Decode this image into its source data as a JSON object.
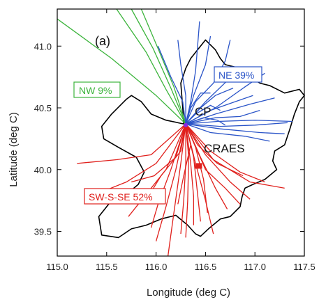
{
  "chart_data": {
    "type": "line",
    "panel_label": "(a)",
    "xlabel": "Longitude (deg C)",
    "ylabel": "Latitude (deg C)",
    "xlim": [
      115.0,
      117.5
    ],
    "ylim": [
      39.3,
      41.3
    ],
    "xticks": [
      "115.0",
      "115.5",
      "116.0",
      "116.5",
      "117.0",
      "117.5"
    ],
    "yticks": [
      "39.5",
      "40.0",
      "40.5",
      "41.0"
    ],
    "colors": {
      "NW": "#3cb43c",
      "NE": "#2a54c8",
      "SW-S-SE": "#e0201c",
      "boundary": "#000000",
      "CP_marker": "#8a2be2"
    },
    "annotations": {
      "nw_label": "NW 9%",
      "ne_label": "NE 39%",
      "sw_label": "SW-S-SE 52%",
      "cp_label": "CP",
      "craes_label": "CRAES"
    },
    "sites": {
      "CP": [
        116.3,
        40.36
      ],
      "CRAES": [
        116.43,
        40.03
      ]
    },
    "boundary": [
      [
        116.28,
        40.37
      ],
      [
        116.1,
        40.4
      ],
      [
        115.95,
        40.45
      ],
      [
        115.85,
        40.55
      ],
      [
        115.75,
        40.6
      ],
      [
        115.7,
        40.57
      ],
      [
        115.55,
        40.45
      ],
      [
        115.45,
        40.35
      ],
      [
        115.47,
        40.25
      ],
      [
        115.62,
        40.18
      ],
      [
        115.8,
        40.1
      ],
      [
        115.88,
        39.98
      ],
      [
        115.82,
        39.88
      ],
      [
        115.7,
        39.8
      ],
      [
        115.55,
        39.75
      ],
      [
        115.42,
        39.62
      ],
      [
        115.45,
        39.47
      ],
      [
        115.62,
        39.45
      ],
      [
        115.75,
        39.52
      ],
      [
        115.9,
        39.55
      ],
      [
        116.05,
        39.6
      ],
      [
        116.2,
        39.63
      ],
      [
        116.32,
        39.55
      ],
      [
        116.4,
        39.48
      ],
      [
        116.45,
        39.46
      ],
      [
        116.53,
        39.52
      ],
      [
        116.65,
        39.6
      ],
      [
        116.75,
        39.62
      ],
      [
        116.85,
        39.7
      ],
      [
        116.87,
        39.78
      ],
      [
        116.9,
        39.85
      ],
      [
        116.98,
        39.88
      ],
      [
        117.1,
        39.92
      ],
      [
        117.22,
        40.0
      ],
      [
        117.18,
        40.07
      ],
      [
        117.2,
        40.15
      ],
      [
        117.3,
        40.2
      ],
      [
        117.35,
        40.32
      ],
      [
        117.4,
        40.45
      ],
      [
        117.45,
        40.55
      ],
      [
        117.5,
        40.6
      ],
      [
        117.45,
        40.65
      ],
      [
        117.3,
        40.62
      ],
      [
        117.15,
        40.68
      ],
      [
        117.05,
        40.7
      ],
      [
        116.95,
        40.75
      ],
      [
        116.85,
        40.82
      ],
      [
        116.7,
        40.85
      ],
      [
        116.65,
        40.9
      ],
      [
        116.6,
        40.97
      ],
      [
        116.5,
        41.05
      ],
      [
        116.43,
        40.98
      ],
      [
        116.35,
        40.9
      ],
      [
        116.3,
        40.82
      ],
      [
        116.25,
        40.7
      ],
      [
        116.27,
        40.5
      ],
      [
        116.28,
        40.37
      ]
    ],
    "series": [
      {
        "group": "NW",
        "lines": [
          [
            [
              115.0,
              41.22
            ],
            [
              115.55,
              40.9
            ],
            [
              116.0,
              40.6
            ],
            [
              116.3,
              40.37
            ]
          ],
          [
            [
              115.6,
              41.3
            ],
            [
              115.9,
              40.95
            ],
            [
              116.1,
              40.65
            ],
            [
              116.3,
              40.37
            ]
          ],
          [
            [
              115.75,
              41.3
            ],
            [
              115.97,
              40.98
            ],
            [
              116.15,
              40.66
            ],
            [
              116.3,
              40.37
            ]
          ],
          [
            [
              115.85,
              41.3
            ],
            [
              116.02,
              40.98
            ],
            [
              116.18,
              40.67
            ],
            [
              116.3,
              40.37
            ]
          ]
        ]
      },
      {
        "group": "NE",
        "lines": [
          [
            [
              116.3,
              40.37
            ],
            [
              116.35,
              40.55
            ],
            [
              116.4,
              40.8
            ],
            [
              116.44,
              41.2
            ]
          ],
          [
            [
              116.3,
              40.37
            ],
            [
              116.38,
              40.6
            ],
            [
              116.5,
              40.85
            ],
            [
              116.55,
              41.08
            ]
          ],
          [
            [
              116.3,
              40.37
            ],
            [
              116.4,
              40.55
            ],
            [
              116.58,
              40.7
            ],
            [
              116.7,
              40.88
            ],
            [
              116.75,
              41.05
            ]
          ],
          [
            [
              116.3,
              40.37
            ],
            [
              116.3,
              40.6
            ],
            [
              116.25,
              40.85
            ],
            [
              116.22,
              41.05
            ]
          ],
          [
            [
              116.3,
              40.37
            ],
            [
              116.27,
              40.55
            ],
            [
              116.15,
              40.75
            ],
            [
              116.02,
              41.0
            ]
          ],
          [
            [
              116.3,
              40.37
            ],
            [
              116.35,
              40.5
            ],
            [
              116.45,
              40.62
            ],
            [
              116.55,
              40.62
            ]
          ],
          [
            [
              116.3,
              40.37
            ],
            [
              116.45,
              40.5
            ],
            [
              116.6,
              40.6
            ],
            [
              116.78,
              40.66
            ]
          ],
          [
            [
              116.3,
              40.37
            ],
            [
              116.55,
              40.48
            ],
            [
              116.8,
              40.55
            ],
            [
              116.98,
              40.6
            ]
          ],
          [
            [
              116.3,
              40.37
            ],
            [
              116.6,
              40.42
            ],
            [
              116.85,
              40.43
            ],
            [
              117.05,
              40.48
            ]
          ],
          [
            [
              116.3,
              40.37
            ],
            [
              116.65,
              40.35
            ],
            [
              117.0,
              40.36
            ],
            [
              117.33,
              40.38
            ]
          ],
          [
            [
              116.3,
              40.37
            ],
            [
              116.65,
              40.33
            ],
            [
              117.05,
              40.3
            ],
            [
              117.3,
              40.29
            ]
          ],
          [
            [
              116.3,
              40.37
            ],
            [
              116.55,
              40.3
            ],
            [
              116.9,
              40.27
            ],
            [
              117.15,
              40.23
            ]
          ],
          [
            [
              116.3,
              40.37
            ],
            [
              116.62,
              40.39
            ],
            [
              117.0,
              40.4
            ],
            [
              117.38,
              40.39
            ]
          ],
          [
            [
              116.3,
              40.37
            ],
            [
              116.5,
              40.55
            ],
            [
              116.72,
              40.72
            ],
            [
              116.92,
              40.83
            ]
          ],
          [
            [
              116.3,
              40.37
            ],
            [
              116.6,
              40.5
            ],
            [
              116.9,
              40.67
            ],
            [
              117.1,
              40.78
            ]
          ],
          [
            [
              116.3,
              40.37
            ],
            [
              116.6,
              40.45
            ],
            [
              116.95,
              40.53
            ],
            [
              117.2,
              40.58
            ]
          ],
          [
            [
              116.3,
              40.37
            ],
            [
              116.4,
              40.45
            ],
            [
              116.55,
              40.52
            ],
            [
              116.65,
              40.48
            ]
          ],
          [
            [
              116.3,
              40.37
            ],
            [
              116.48,
              40.42
            ],
            [
              116.62,
              40.4
            ],
            [
              116.7,
              40.36
            ]
          ]
        ]
      },
      {
        "group": "SW-S-SE",
        "lines": [
          [
            [
              116.3,
              40.37
            ],
            [
              115.95,
              40.12
            ],
            [
              115.6,
              40.08
            ],
            [
              115.2,
              40.05
            ]
          ],
          [
            [
              116.3,
              40.37
            ],
            [
              116.0,
              40.05
            ],
            [
              115.7,
              39.9
            ],
            [
              115.45,
              39.82
            ]
          ],
          [
            [
              116.3,
              40.37
            ],
            [
              116.1,
              40.0
            ],
            [
              115.9,
              39.8
            ],
            [
              115.72,
              39.62
            ]
          ],
          [
            [
              116.3,
              40.37
            ],
            [
              116.15,
              40.0
            ],
            [
              116.02,
              39.72
            ],
            [
              115.95,
              39.53
            ]
          ],
          [
            [
              116.3,
              40.37
            ],
            [
              116.2,
              40.0
            ],
            [
              116.1,
              39.7
            ],
            [
              116.0,
              39.42
            ]
          ],
          [
            [
              116.3,
              40.37
            ],
            [
              116.25,
              40.05
            ],
            [
              116.18,
              39.65
            ],
            [
              116.12,
              39.3
            ]
          ],
          [
            [
              116.3,
              40.37
            ],
            [
              116.3,
              40.05
            ],
            [
              116.28,
              39.75
            ],
            [
              116.25,
              39.48
            ]
          ],
          [
            [
              116.3,
              40.37
            ],
            [
              116.33,
              40.1
            ],
            [
              116.32,
              39.75
            ],
            [
              116.3,
              39.45
            ]
          ],
          [
            [
              116.3,
              40.37
            ],
            [
              116.35,
              40.05
            ],
            [
              116.38,
              39.78
            ],
            [
              116.38,
              39.55
            ]
          ],
          [
            [
              116.3,
              40.37
            ],
            [
              116.38,
              40.1
            ],
            [
              116.42,
              39.8
            ],
            [
              116.45,
              39.58
            ]
          ],
          [
            [
              116.3,
              40.37
            ],
            [
              116.4,
              40.05
            ],
            [
              116.5,
              39.75
            ],
            [
              116.58,
              39.48
            ]
          ],
          [
            [
              116.3,
              40.37
            ],
            [
              116.45,
              40.1
            ],
            [
              116.6,
              39.85
            ],
            [
              116.72,
              39.68
            ]
          ],
          [
            [
              116.3,
              40.37
            ],
            [
              116.5,
              40.12
            ],
            [
              116.75,
              39.9
            ],
            [
              116.95,
              39.76
            ]
          ],
          [
            [
              116.3,
              40.37
            ],
            [
              116.55,
              40.15
            ],
            [
              116.85,
              39.98
            ],
            [
              117.1,
              39.9
            ]
          ],
          [
            [
              116.3,
              40.37
            ],
            [
              116.58,
              40.08
            ],
            [
              116.95,
              39.9
            ],
            [
              117.3,
              39.85
            ]
          ],
          [
            [
              116.3,
              40.37
            ],
            [
              116.5,
              40.0
            ],
            [
              116.7,
              39.85
            ],
            [
              116.85,
              39.72
            ]
          ],
          [
            [
              116.3,
              40.37
            ],
            [
              116.2,
              40.1
            ],
            [
              115.98,
              39.95
            ],
            [
              115.75,
              39.9
            ]
          ],
          [
            [
              116.3,
              40.37
            ],
            [
              116.25,
              40.15
            ],
            [
              116.05,
              39.95
            ],
            [
              115.92,
              39.78
            ]
          ],
          [
            [
              116.3,
              40.37
            ],
            [
              116.35,
              40.2
            ],
            [
              116.28,
              39.95
            ],
            [
              116.22,
              39.72
            ]
          ],
          [
            [
              116.3,
              40.37
            ],
            [
              116.4,
              40.18
            ],
            [
              116.48,
              39.92
            ],
            [
              116.52,
              39.65
            ]
          ],
          [
            [
              116.3,
              40.37
            ],
            [
              116.42,
              40.2
            ],
            [
              116.62,
              40.05
            ],
            [
              116.88,
              39.95
            ]
          ]
        ]
      }
    ]
  }
}
